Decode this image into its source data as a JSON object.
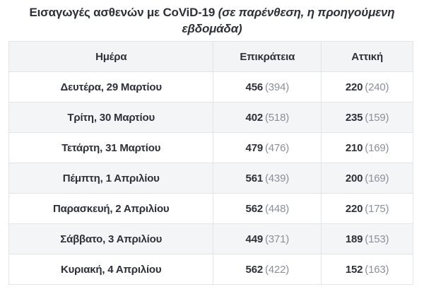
{
  "title": {
    "main": "Εισαγωγές ασθενών με CoViD-19",
    "note_italic": "(σε παρένθεση, η προηγούμενη εβδομάδα)"
  },
  "colors": {
    "title_text": "#2d3039",
    "cell_text": "#33363d",
    "prev_value_text": "#8b8f98",
    "header_bg": "#f3f4f6",
    "row_alt_bg": "#f4f5f7",
    "border": "#e3e4e6"
  },
  "chart_data": {
    "type": "table",
    "title": "Εισαγωγές ασθενών με CoViD-19 (σε παρένθεση, η προηγούμενη εβδομάδα)",
    "columns": [
      "Ημέρα",
      "Επικράτεια",
      "Αττική"
    ],
    "rows": [
      {
        "day": "Δευτέρα, 29 Μαρτίου",
        "epikrateia": "456",
        "epikrateia_prev": "394",
        "attiki": "220",
        "attiki_prev": "240"
      },
      {
        "day": "Τρίτη, 30 Μαρτίου",
        "epikrateia": "402",
        "epikrateia_prev": "518",
        "attiki": "235",
        "attiki_prev": "159"
      },
      {
        "day": "Τετάρτη, 31 Μαρτίου",
        "epikrateia": "479",
        "epikrateia_prev": "476",
        "attiki": "210",
        "attiki_prev": "169"
      },
      {
        "day": "Πέμπτη, 1 Απριλίου",
        "epikrateia": "561",
        "epikrateia_prev": "439",
        "attiki": "200",
        "attiki_prev": "169"
      },
      {
        "day": "Παρασκευή, 2 Απριλίου",
        "epikrateia": "562",
        "epikrateia_prev": "448",
        "attiki": "220",
        "attiki_prev": "175"
      },
      {
        "day": "Σάββατο, 3 Απριλίου",
        "epikrateia": "449",
        "epikrateia_prev": "371",
        "attiki": "189",
        "attiki_prev": "153"
      },
      {
        "day": "Κυριακή, 4 Απριλίου",
        "epikrateia": "562",
        "epikrateia_prev": "422",
        "attiki": "152",
        "attiki_prev": "163"
      }
    ]
  }
}
